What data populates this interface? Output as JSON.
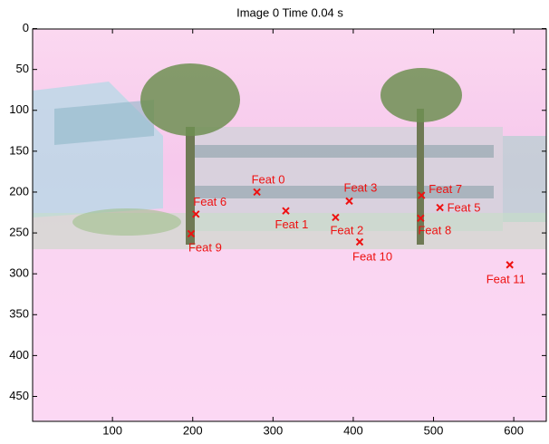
{
  "chart_data": {
    "type": "scatter",
    "title": "Image 0   Time 0.04 s",
    "x": [
      280,
      316,
      378,
      395,
      508,
      204,
      485,
      484,
      198,
      408,
      595
    ],
    "values": [
      200,
      223,
      231,
      211,
      219,
      227,
      204,
      232,
      251,
      261,
      289
    ],
    "labels": [
      "Feat 0",
      "Feat 1",
      "Feat 2",
      "Feat 3",
      "Feat 5",
      "Feat 6",
      "Feat 7",
      "Feat 8",
      "Feat 9",
      "Feat 10",
      "Feat 11"
    ],
    "color": "#ee1111",
    "xlim": [
      0.5,
      640.5
    ],
    "ylim": [
      0.5,
      480.5
    ],
    "y_reversed": true,
    "xticks": [
      100,
      200,
      300,
      400,
      500,
      600
    ],
    "yticks": [
      0,
      50,
      100,
      150,
      200,
      250,
      300,
      350,
      400,
      450
    ]
  }
}
